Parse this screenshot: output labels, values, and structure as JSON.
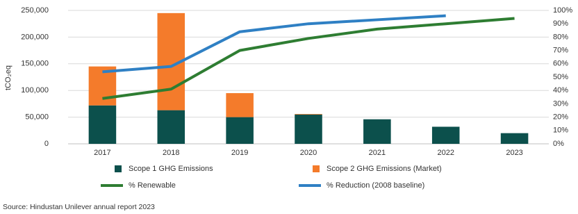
{
  "chart_data": {
    "type": "bar",
    "stacked": true,
    "y_label": "tCO₂eq",
    "categories": [
      "2017",
      "2018",
      "2019",
      "2020",
      "2021",
      "2022",
      "2023"
    ],
    "series": [
      {
        "name": "Scope 1 GHG Emissions",
        "type": "bar",
        "color": "#0c504c",
        "values": [
          72000,
          63000,
          50000,
          55000,
          46000,
          32000,
          20000
        ]
      },
      {
        "name": "Scope 2 GHG Emissions (Market)",
        "type": "bar",
        "color": "#f47b2b",
        "values": [
          73000,
          182000,
          45000,
          1000,
          0,
          0,
          0
        ]
      },
      {
        "name": "% Renewable",
        "type": "line",
        "axis": "y2",
        "color": "#2e7d32",
        "values": [
          34,
          41,
          70,
          79,
          86,
          90,
          94
        ]
      },
      {
        "name": "% Reduction (2008 baseline)",
        "type": "line",
        "axis": "y2",
        "color": "#2f80c4",
        "values": [
          54,
          58,
          84,
          90,
          93,
          96,
          null
        ]
      }
    ],
    "ylim": [
      0,
      250000
    ],
    "yticks": [
      0,
      {
        "value": 50000,
        "label": "50,000"
      },
      {
        "value": 100000,
        "label": "100,000"
      },
      {
        "value": 150000,
        "label": "150,000"
      },
      {
        "value": 200000,
        "label": "200,000"
      },
      {
        "value": 250000,
        "label": "250,000"
      }
    ],
    "y2lim": [
      0,
      100
    ],
    "y2ticks": [
      {
        "value": 0,
        "label": "0%"
      },
      {
        "value": 10,
        "label": "10%"
      },
      {
        "value": 20,
        "label": "20%"
      },
      {
        "value": 30,
        "label": "30%"
      },
      {
        "value": 40,
        "label": "40%"
      },
      {
        "value": 50,
        "label": "50%"
      },
      {
        "value": 60,
        "label": "60%"
      },
      {
        "value": 70,
        "label": "70%"
      },
      {
        "value": 80,
        "label": "80%"
      },
      {
        "value": 90,
        "label": "90%"
      },
      {
        "value": 100,
        "label": "100%"
      }
    ],
    "grid": true,
    "source": "Source: Hindustan Unilever annual report 2023"
  }
}
